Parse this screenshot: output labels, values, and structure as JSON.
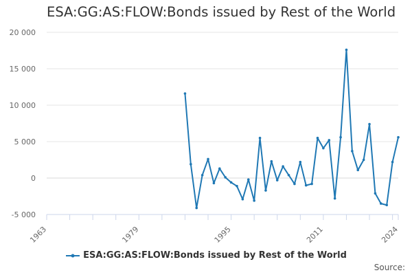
{
  "title": "ESA:GG:AS:FLOW:Bonds issued by Rest of the World",
  "source_label": "Source:",
  "chart_data": {
    "type": "line",
    "title": "ESA:GG:AS:FLOW:Bonds issued by Rest of the World",
    "xlabel": "",
    "ylabel": "",
    "xlim": [
      1963,
      2024
    ],
    "ylim": [
      -5000,
      20000
    ],
    "x_ticks": [
      "1963",
      "1979",
      "1995",
      "2011",
      "2024"
    ],
    "y_ticks": [
      "20 000",
      "15 000",
      "10 000",
      "5 000",
      "0",
      "-5 000"
    ],
    "y_tick_values": [
      20000,
      15000,
      10000,
      5000,
      0,
      -5000
    ],
    "x_tick_values": [
      1963,
      1979,
      1995,
      2011,
      2024
    ],
    "grid": "horizontal",
    "legend_position": "bottom",
    "color": "#1f78b4",
    "series": [
      {
        "name": "ESA:GG:AS:FLOW:Bonds issued by Rest of the World",
        "x": [
          1987,
          1988,
          1989,
          1990,
          1991,
          1992,
          1993,
          1994,
          1995,
          1996,
          1997,
          1998,
          1999,
          2000,
          2001,
          2002,
          2003,
          2004,
          2005,
          2006,
          2007,
          2008,
          2009,
          2010,
          2011,
          2012,
          2013,
          2014,
          2015,
          2016,
          2017,
          2018,
          2019,
          2020,
          2021,
          2022,
          2023,
          2024
        ],
        "y": [
          11600,
          1900,
          -4100,
          400,
          2600,
          -700,
          1300,
          100,
          -600,
          -1100,
          -2900,
          -200,
          -3100,
          5500,
          -1700,
          2300,
          -300,
          1600,
          400,
          -800,
          2200,
          -1000,
          -800,
          5500,
          4100,
          5200,
          -2800,
          5600,
          17600,
          3700,
          1100,
          2500,
          7400,
          -2100,
          -3500,
          -3700,
          2200,
          5600
        ]
      }
    ]
  }
}
